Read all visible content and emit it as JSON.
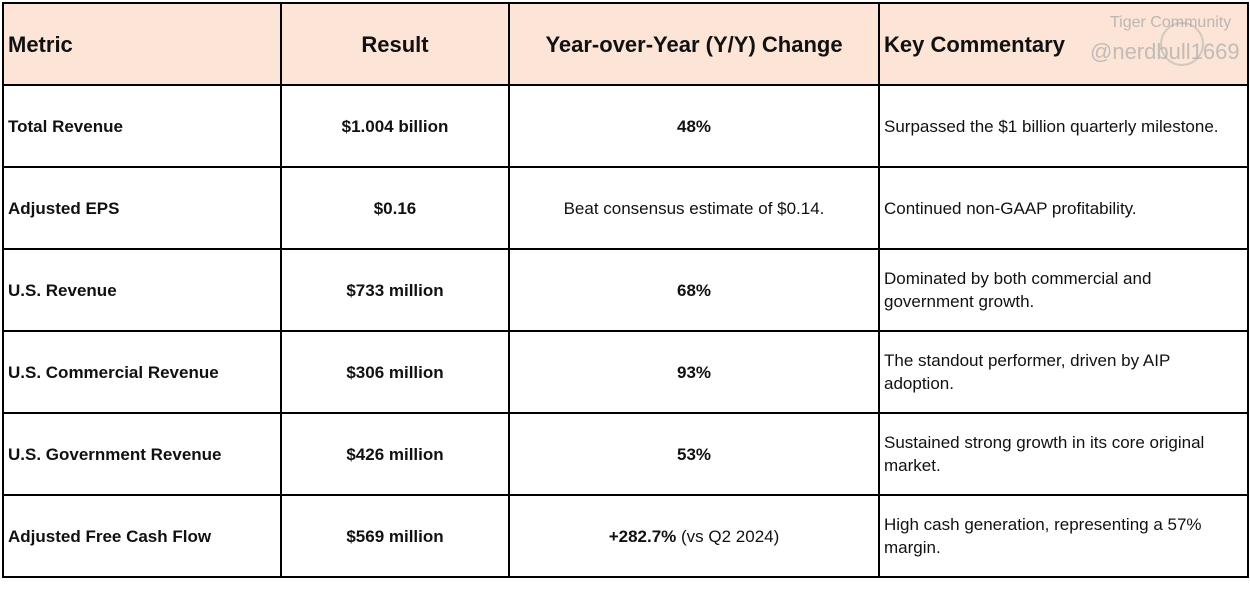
{
  "headers": [
    "Metric",
    "Result",
    "Year-over-Year (Y/Y) Change",
    "Key Commentary"
  ],
  "rows": [
    {
      "metric": "Total Revenue",
      "result": "$1.004 billion",
      "change_bold": "48%",
      "change_rest": "",
      "commentary": "Surpassed the $1 billion quarterly milestone."
    },
    {
      "metric": "Adjusted EPS",
      "result": "$0.16",
      "change_bold": "",
      "change_rest": "Beat consensus estimate of $0.14.",
      "commentary": "Continued non-GAAP profitability."
    },
    {
      "metric": "U.S. Revenue",
      "result": "$733 million",
      "change_bold": "68%",
      "change_rest": "",
      "commentary": "Dominated by both commercial and government growth."
    },
    {
      "metric": "U.S. Commercial Revenue",
      "result": "$306 million",
      "change_bold": "93%",
      "change_rest": "",
      "commentary": "The standout performer, driven by AIP adoption."
    },
    {
      "metric": "U.S. Government Revenue",
      "result": "$426 million",
      "change_bold": "53%",
      "change_rest": "",
      "commentary": "Sustained strong growth in its core original market."
    },
    {
      "metric": "Adjusted Free Cash Flow",
      "result": "$569 million",
      "change_bold": "+282.7%",
      "change_rest": " (vs Q2 2024)",
      "commentary": "High cash generation, representing a 57% margin."
    }
  ],
  "watermark": {
    "brand": "Tiger Community",
    "handle": "@nerdbull1669"
  }
}
